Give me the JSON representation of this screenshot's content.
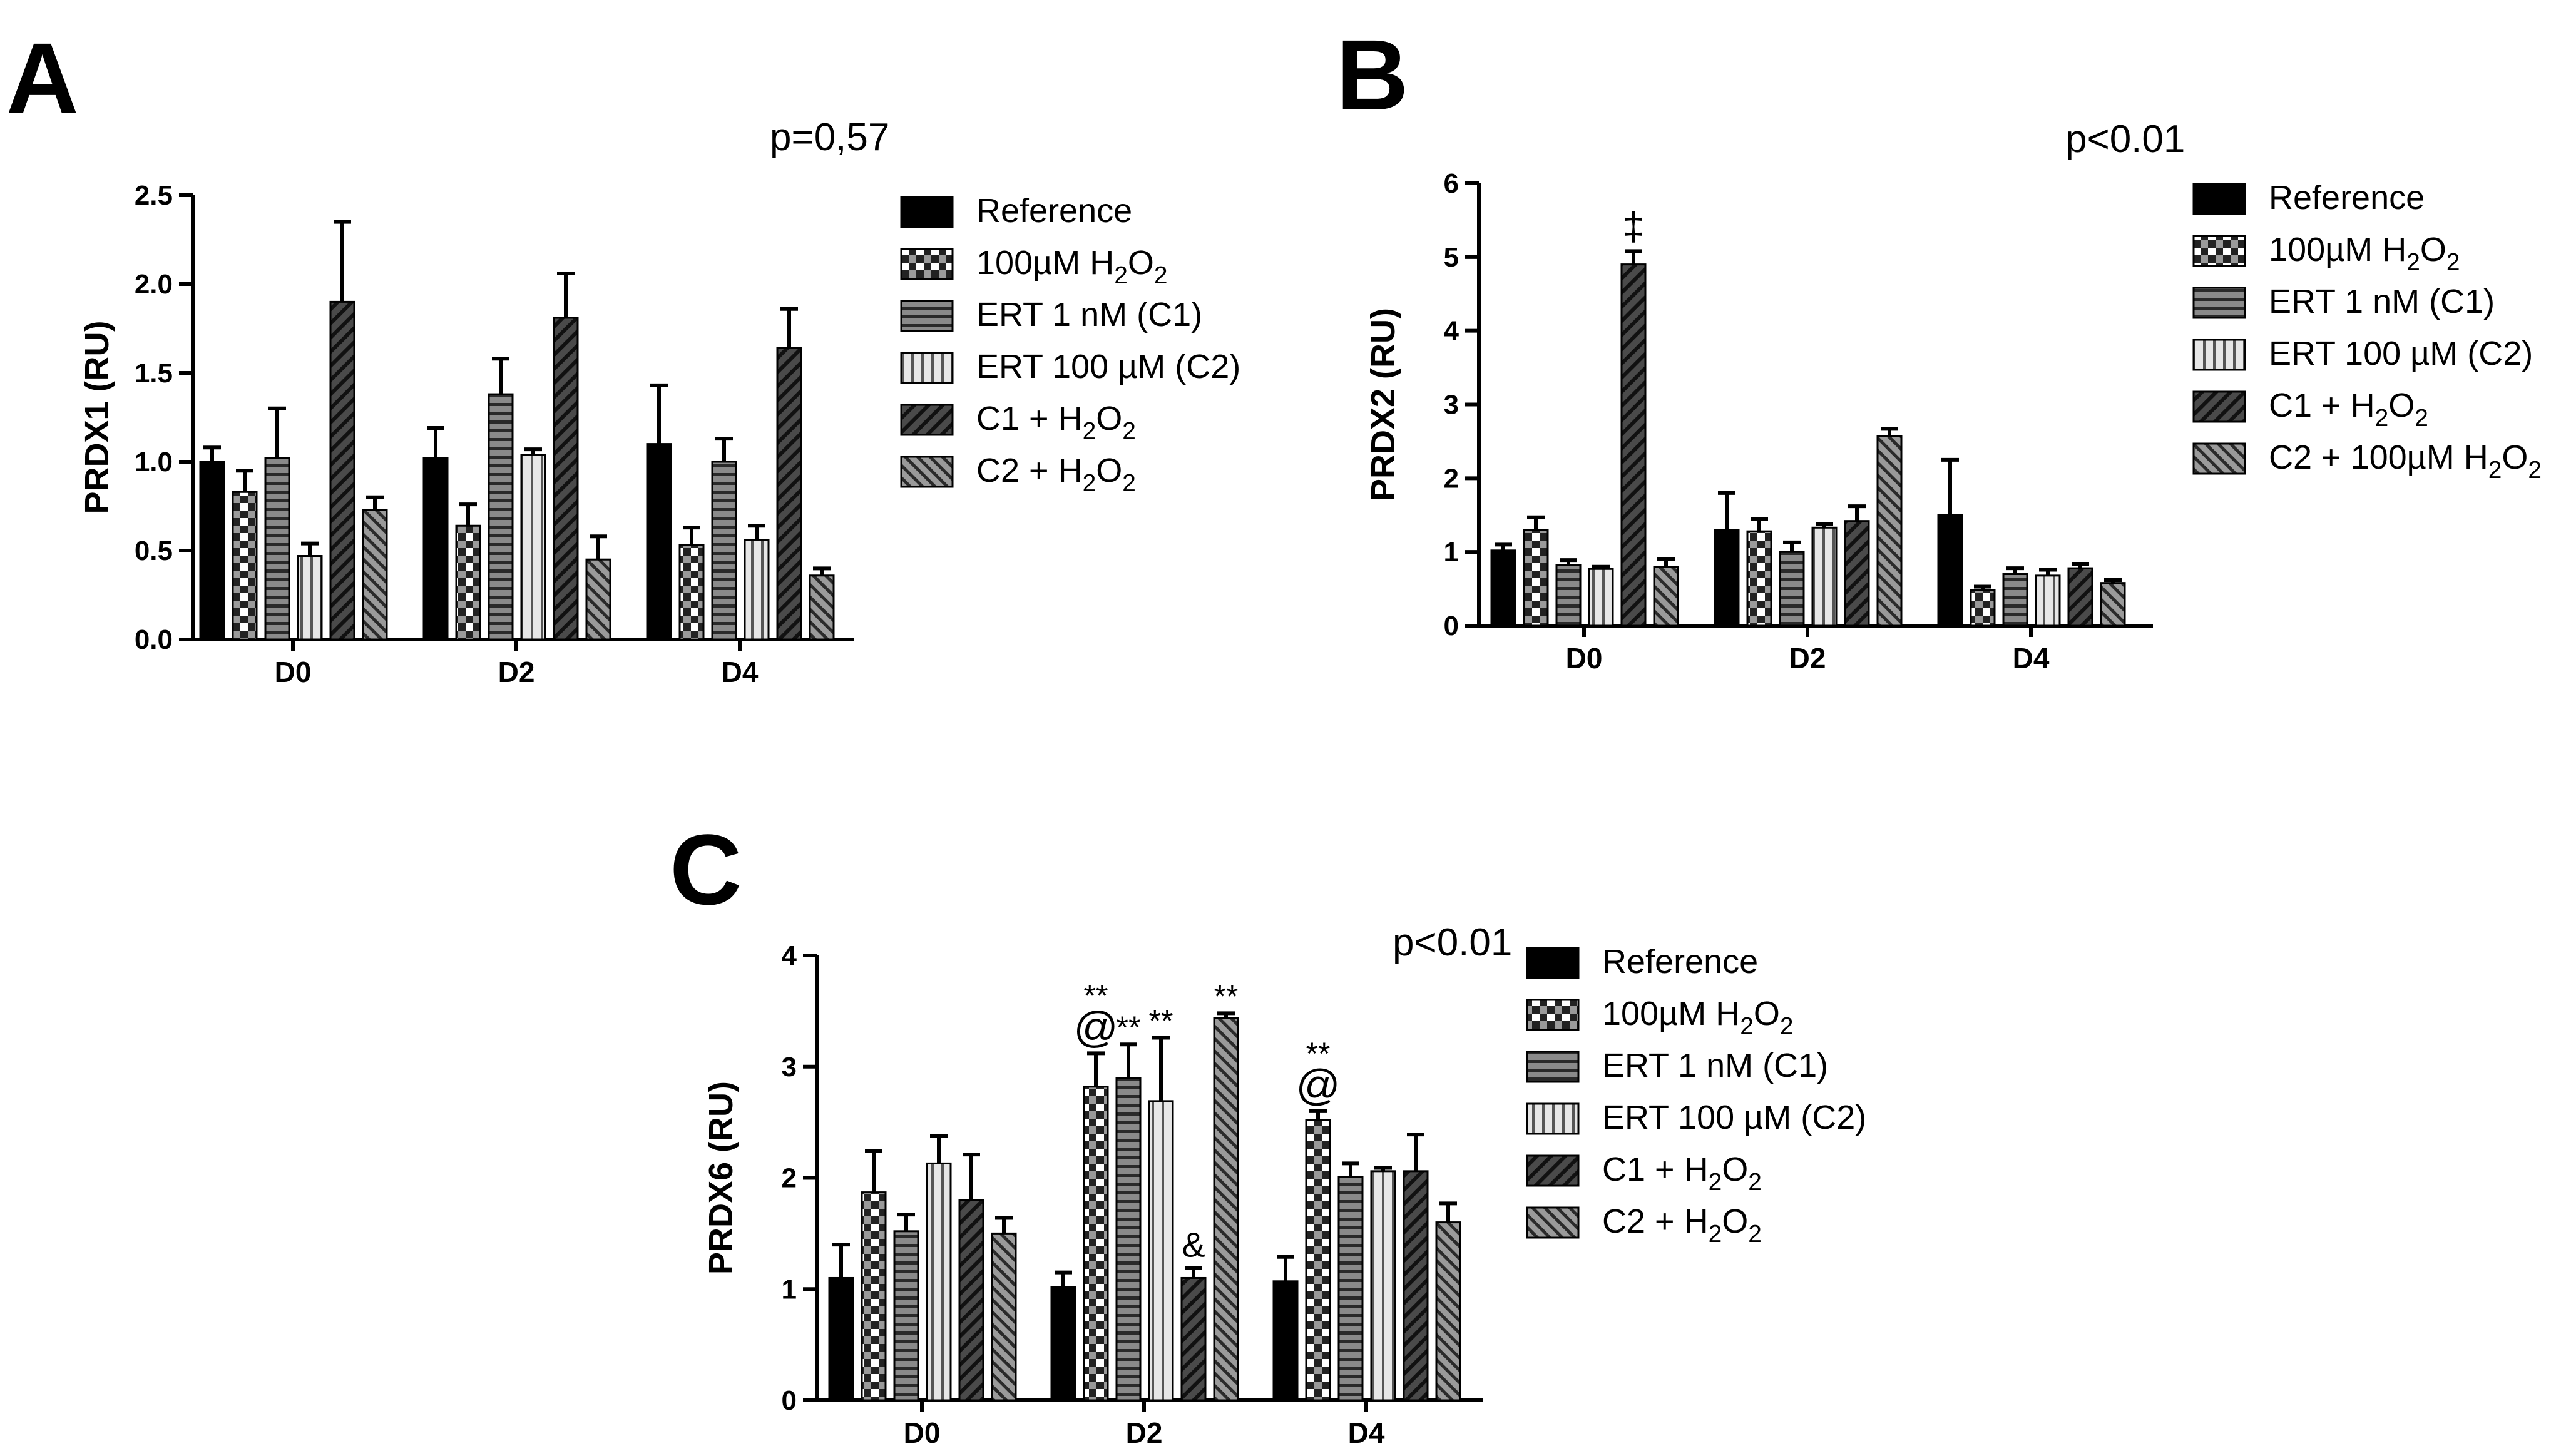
{
  "chart_data": [
    {
      "panel": "A",
      "type": "bar",
      "p_value": "p=0,57",
      "ylabel": "PRDX1 (RU)",
      "xlabel": "",
      "ylim": [
        0,
        2.5
      ],
      "yticks": [
        "0.0",
        "0.5",
        "1.0",
        "1.5",
        "2.0",
        "2.5"
      ],
      "categories": [
        "D0",
        "D2",
        "D4"
      ],
      "series": [
        {
          "name": "Reference",
          "values": [
            1.0,
            1.02,
            1.1
          ],
          "errors": [
            0.08,
            0.17,
            0.33
          ]
        },
        {
          "name": "100µM H2O2",
          "values": [
            0.83,
            0.64,
            0.53
          ],
          "errors": [
            0.12,
            0.12,
            0.1
          ]
        },
        {
          "name": "ERT 1 nM (C1)",
          "values": [
            1.02,
            1.38,
            1.0
          ],
          "errors": [
            0.28,
            0.2,
            0.13
          ]
        },
        {
          "name": "ERT 100 µM (C2)",
          "values": [
            0.47,
            1.04,
            0.56
          ],
          "errors": [
            0.07,
            0.03,
            0.08
          ]
        },
        {
          "name": "C1 + H2O2",
          "values": [
            1.9,
            1.81,
            1.64
          ],
          "errors": [
            0.45,
            0.25,
            0.22
          ]
        },
        {
          "name": "C2 + H2O2",
          "values": [
            0.73,
            0.45,
            0.36
          ],
          "errors": [
            0.07,
            0.13,
            0.04
          ]
        }
      ],
      "annotations": []
    },
    {
      "panel": "B",
      "type": "bar",
      "p_value": "p<0.01",
      "ylabel": "PRDX2 (RU)",
      "xlabel": "",
      "ylim": [
        0,
        6
      ],
      "yticks": [
        "0",
        "1",
        "2",
        "3",
        "4",
        "5",
        "6"
      ],
      "categories": [
        "D0",
        "D2",
        "D4"
      ],
      "series": [
        {
          "name": "Reference",
          "values": [
            1.02,
            1.3,
            1.5
          ],
          "errors": [
            0.08,
            0.5,
            0.75
          ]
        },
        {
          "name": "100µM H2O2",
          "values": [
            1.3,
            1.28,
            0.48
          ],
          "errors": [
            0.17,
            0.17,
            0.05
          ]
        },
        {
          "name": "ERT 1 nM (C1)",
          "values": [
            0.82,
            1.0,
            0.7
          ],
          "errors": [
            0.07,
            0.13,
            0.08
          ]
        },
        {
          "name": "ERT 100 µM (C2)",
          "values": [
            0.77,
            1.33,
            0.68
          ],
          "errors": [
            0.03,
            0.05,
            0.08
          ]
        },
        {
          "name": "C1 + H2O2",
          "values": [
            4.9,
            1.42,
            0.78
          ],
          "errors": [
            0.18,
            0.2,
            0.06
          ]
        },
        {
          "name": "C2 + 100µM H2O2",
          "values": [
            0.8,
            2.57,
            0.58
          ],
          "errors": [
            0.1,
            0.1,
            0.04
          ]
        }
      ],
      "annotations": [
        {
          "text": "‡",
          "category": 0,
          "series": 4
        }
      ]
    },
    {
      "panel": "C",
      "type": "bar",
      "p_value": "p<0.01",
      "ylabel": "PRDX6 (RU)",
      "xlabel": "",
      "ylim": [
        0,
        4
      ],
      "yticks": [
        "0",
        "1",
        "2",
        "3",
        "4"
      ],
      "categories": [
        "D0",
        "D2",
        "D4"
      ],
      "series": [
        {
          "name": "Reference",
          "values": [
            1.1,
            1.02,
            1.07
          ],
          "errors": [
            0.3,
            0.13,
            0.22
          ]
        },
        {
          "name": "100µM H2O2",
          "values": [
            1.87,
            2.82,
            2.52
          ],
          "errors": [
            0.37,
            0.3,
            0.08
          ]
        },
        {
          "name": "ERT 1 nM (C1)",
          "values": [
            1.52,
            2.9,
            2.01
          ],
          "errors": [
            0.15,
            0.3,
            0.12
          ]
        },
        {
          "name": "ERT 100 µM (C2)",
          "values": [
            2.13,
            2.69,
            2.06
          ],
          "errors": [
            0.25,
            0.57,
            0.03
          ]
        },
        {
          "name": "C1 + H2O2",
          "values": [
            1.8,
            1.1,
            2.06
          ],
          "errors": [
            0.41,
            0.09,
            0.33
          ]
        },
        {
          "name": "C2 + H2O2",
          "values": [
            1.5,
            3.44,
            1.6
          ],
          "errors": [
            0.14,
            0.04,
            0.17
          ]
        }
      ],
      "annotations": [
        {
          "text": "**",
          "category": 1,
          "series": 1,
          "level": 1
        },
        {
          "text": "@",
          "category": 1,
          "series": 1,
          "level": 0
        },
        {
          "text": "**",
          "category": 1,
          "series": 2,
          "level": 0
        },
        {
          "text": "**",
          "category": 1,
          "series": 3,
          "level": 0
        },
        {
          "text": "&",
          "category": 1,
          "series": 4,
          "level": 0
        },
        {
          "text": "**",
          "category": 1,
          "series": 5,
          "level": 0
        },
        {
          "text": "**",
          "category": 2,
          "series": 1,
          "level": 1
        },
        {
          "text": "@",
          "category": 2,
          "series": 1,
          "level": 0
        }
      ]
    }
  ],
  "panels": [
    {
      "letter": "A",
      "legend": [
        {
          "name": "Reference",
          "pattern": "solid"
        },
        {
          "name": "100µM H2O2",
          "pattern": "checker"
        },
        {
          "name": "ERT 1 nM (C1)",
          "pattern": "hstripe"
        },
        {
          "name": "ERT 100 µM (C2)",
          "pattern": "vstripe"
        },
        {
          "name": "C1 + H2O2",
          "pattern": "diagfwd"
        },
        {
          "name": "C2 + H2O2",
          "pattern": "diagback"
        }
      ]
    },
    {
      "letter": "B",
      "legend": [
        {
          "name": "Reference",
          "pattern": "solid"
        },
        {
          "name": "100µM H2O2",
          "pattern": "checker"
        },
        {
          "name": "ERT 1 nM (C1)",
          "pattern": "hstripe"
        },
        {
          "name": "ERT 100 µM (C2)",
          "pattern": "vstripe"
        },
        {
          "name": "C1 + H2O2",
          "pattern": "diagfwd"
        },
        {
          "name": "C2 + 100µM H2O2",
          "pattern": "diagback"
        }
      ]
    },
    {
      "letter": "C",
      "legend": [
        {
          "name": "Reference",
          "pattern": "solid"
        },
        {
          "name": "100µM H2O2",
          "pattern": "checker"
        },
        {
          "name": "ERT 1 nM (C1)",
          "pattern": "hstripe"
        },
        {
          "name": "ERT 100 µM (C2)",
          "pattern": "vstripe"
        },
        {
          "name": "C1 + H2O2",
          "pattern": "diagfwd"
        },
        {
          "name": "C2 + H2O2",
          "pattern": "diagback"
        }
      ]
    }
  ],
  "colors": {
    "ink": "#000000",
    "background": "#ffffff",
    "pattern_gray": "#7a7a7a",
    "pattern_light": "#d9d9d9"
  }
}
